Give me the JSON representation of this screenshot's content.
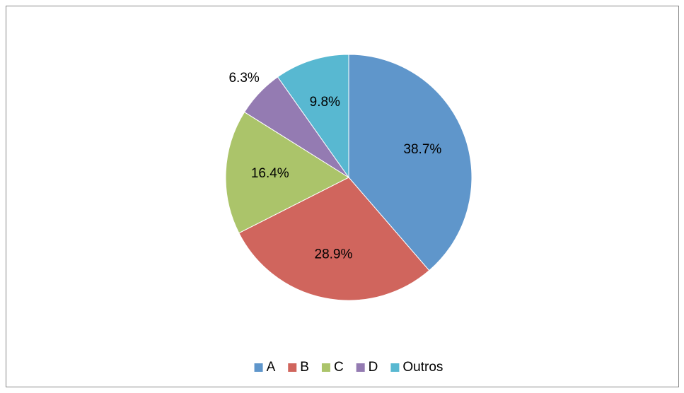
{
  "chart_data": {
    "type": "pie",
    "categories": [
      "A",
      "B",
      "C",
      "D",
      "Outros"
    ],
    "values": [
      38.7,
      28.9,
      16.4,
      6.3,
      9.8
    ],
    "value_labels": [
      "38.7%",
      "28.9%",
      "16.4%",
      "6.3%",
      "9.8%"
    ],
    "colors": [
      "#5f96cb",
      "#d0655d",
      "#abc46a",
      "#947bb2",
      "#58b8d1"
    ],
    "legend": "bottom"
  }
}
